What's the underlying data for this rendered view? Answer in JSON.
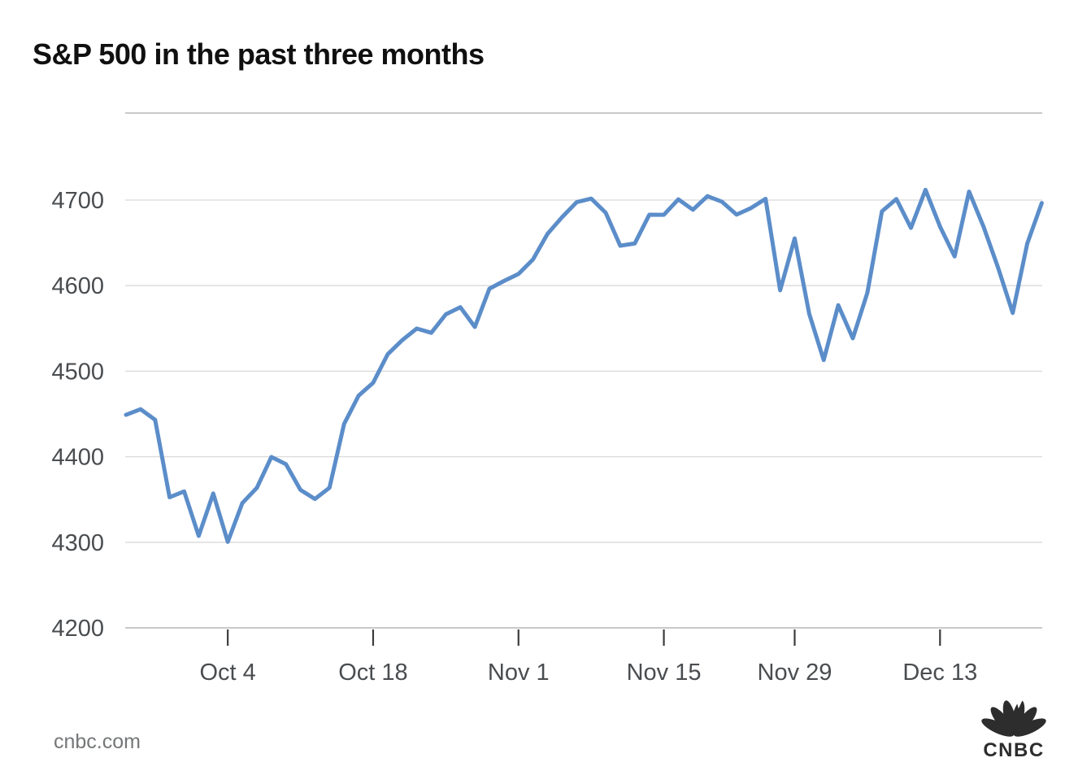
{
  "header": {
    "title": "S&P 500 in the past three months"
  },
  "footer": {
    "attribution": "cnbc.com",
    "logo_text": "CNBC"
  },
  "colors": {
    "background": "#ffffff",
    "line": "#5b8dc9",
    "grid": "#d9d9d9",
    "axis": "#c9c9c9",
    "tick": "#3c3c3c",
    "axis_label": "#4a4d50",
    "title": "#101010",
    "attribution": "#747678",
    "logo": "#2d2d2d"
  },
  "chart_data": {
    "type": "line",
    "title": "S&P 500 in the past three months",
    "xlabel": "",
    "ylabel": "",
    "grid": "horizontal",
    "legend_position": "none",
    "ylim": [
      4200,
      4800
    ],
    "y_ticks": [
      4200,
      4300,
      4400,
      4500,
      4600,
      4700
    ],
    "x_tick_labels": [
      "Oct 4",
      "Oct 18",
      "Nov 1",
      "Nov 15",
      "Nov 29",
      "Dec 13"
    ],
    "x_tick_indices": [
      7,
      17,
      27,
      37,
      46,
      56
    ],
    "series": [
      {
        "name": "S&P 500",
        "x": [
          "Sep 23",
          "Sep 24",
          "Sep 27",
          "Sep 28",
          "Sep 29",
          "Sep 30",
          "Oct 1",
          "Oct 4",
          "Oct 5",
          "Oct 6",
          "Oct 7",
          "Oct 8",
          "Oct 11",
          "Oct 12",
          "Oct 13",
          "Oct 14",
          "Oct 15",
          "Oct 18",
          "Oct 19",
          "Oct 20",
          "Oct 21",
          "Oct 22",
          "Oct 25",
          "Oct 26",
          "Oct 27",
          "Oct 28",
          "Oct 29",
          "Nov 1",
          "Nov 2",
          "Nov 3",
          "Nov 4",
          "Nov 5",
          "Nov 8",
          "Nov 9",
          "Nov 10",
          "Nov 11",
          "Nov 12",
          "Nov 15",
          "Nov 16",
          "Nov 17",
          "Nov 18",
          "Nov 19",
          "Nov 22",
          "Nov 23",
          "Nov 24",
          "Nov 26",
          "Nov 29",
          "Nov 30",
          "Dec 1",
          "Dec 2",
          "Dec 3",
          "Dec 6",
          "Dec 7",
          "Dec 8",
          "Dec 9",
          "Dec 10",
          "Dec 13",
          "Dec 14",
          "Dec 15",
          "Dec 16",
          "Dec 17",
          "Dec 20",
          "Dec 21",
          "Dec 22"
        ],
        "values": [
          4448.98,
          4455.48,
          4443.11,
          4352.63,
          4359.46,
          4307.54,
          4357.04,
          4300.46,
          4345.72,
          4363.55,
          4399.76,
          4391.34,
          4361.19,
          4350.65,
          4363.8,
          4438.26,
          4471.37,
          4486.46,
          4519.63,
          4536.19,
          4549.78,
          4544.9,
          4566.48,
          4574.79,
          4551.68,
          4596.42,
          4605.38,
          4613.67,
          4630.65,
          4660.57,
          4680.06,
          4697.53,
          4701.7,
          4685.25,
          4646.71,
          4649.27,
          4682.85,
          4682.8,
          4700.9,
          4688.67,
          4704.54,
          4697.96,
          4682.94,
          4690.7,
          4701.46,
          4594.62,
          4655.27,
          4567.0,
          4513.04,
          4577.1,
          4538.43,
          4591.67,
          4686.75,
          4701.21,
          4667.45,
          4712.02,
          4668.97,
          4634.09,
          4709.85,
          4668.67,
          4620.64,
          4568.02,
          4649.23,
          4696.56
        ]
      }
    ]
  }
}
